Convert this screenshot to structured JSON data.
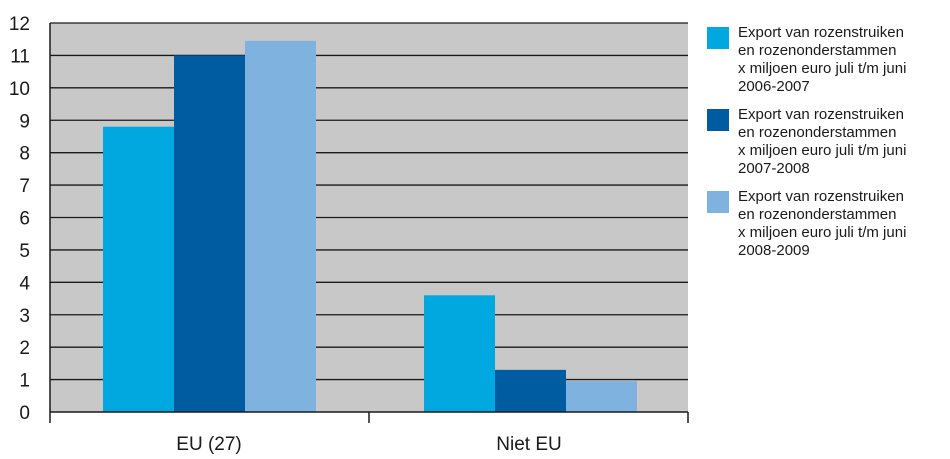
{
  "chart_data": {
    "type": "bar",
    "categories": [
      "EU (27)",
      "Niet EU"
    ],
    "series": [
      {
        "name": "Export van rozenstruiken en rozenonderstammen x miljoen euro juli t/m juni 2006-2007",
        "values": [
          8.8,
          3.6
        ],
        "color": "#00a8e0"
      },
      {
        "name": "Export van rozenstruiken en rozenonderstammen x miljoen euro juli t/m juni 2007-2008",
        "values": [
          11.0,
          1.3
        ],
        "color": "#005ca1"
      },
      {
        "name": "Export van rozenstruiken en rozenonderstammen x miljoen euro juli t/m juni 2008-2009",
        "values": [
          11.45,
          0.95
        ],
        "color": "#7fb2de"
      }
    ],
    "ylim": [
      0,
      12
    ],
    "yticks": [
      0,
      1,
      2,
      3,
      4,
      5,
      6,
      7,
      8,
      9,
      10,
      11,
      12
    ],
    "grid": true,
    "plot_background": "#c8c8c8",
    "legend_position": "right",
    "legend": [
      {
        "lines": [
          "Export van rozenstruiken",
          "en rozenonderstammen",
          "x miljoen euro juli t/m juni",
          "2006-2007"
        ],
        "color": "#00a8e0"
      },
      {
        "lines": [
          "Export van rozenstruiken",
          "en rozenonderstammen",
          "x miljoen euro juli t/m juni",
          "2007-2008"
        ],
        "color": "#005ca1"
      },
      {
        "lines": [
          "Export van rozenstruiken",
          "en rozenonderstammen",
          "x miljoen euro juli t/m juni",
          "2008-2009"
        ],
        "color": "#7fb2de"
      }
    ]
  }
}
